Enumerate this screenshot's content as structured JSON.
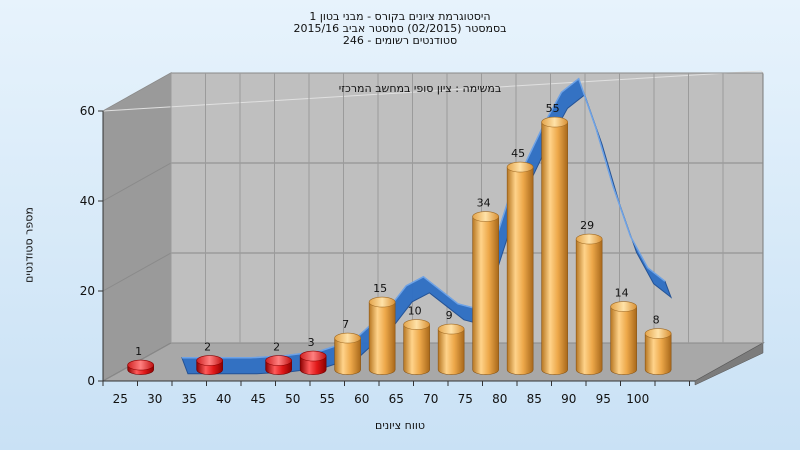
{
  "chart_data": {
    "type": "bar",
    "title_lines": [
      "היסטוגרמת ציונים בקורס - מבני בטון 1",
      "בסמסטר  (02/2015)  סמסטר אביב 2015/16",
      "סטודנטים רשומים - 246"
    ],
    "annotation": "במשימה : ציון סופי במחשב המרכזי",
    "xlabel": "טווח ציונים",
    "ylabel": "מספר סטודנטים",
    "ylim": [
      0,
      60
    ],
    "yticks": [
      0,
      20,
      40,
      60
    ],
    "x_ticks": [
      25,
      30,
      35,
      40,
      45,
      50,
      55,
      60,
      65,
      70,
      75,
      80,
      85,
      90,
      95,
      100
    ],
    "bars": [
      {
        "x": 25,
        "value": 1,
        "label": "1",
        "status": "fail"
      },
      {
        "x": 35,
        "value": 2,
        "label": "2",
        "status": "fail"
      },
      {
        "x": 45,
        "value": 2,
        "label": "2",
        "status": "fail"
      },
      {
        "x": 50,
        "value": 3,
        "label": "3",
        "status": "fail"
      },
      {
        "x": 55,
        "value": 7,
        "label": "7",
        "status": "pass"
      },
      {
        "x": 60,
        "value": 15,
        "label": "15",
        "status": "pass"
      },
      {
        "x": 65,
        "value": 10,
        "label": "10",
        "status": "pass"
      },
      {
        "x": 70,
        "value": 9,
        "label": "9",
        "status": "pass"
      },
      {
        "x": 75,
        "value": 34,
        "label": "34",
        "status": "pass"
      },
      {
        "x": 80,
        "value": 45,
        "label": "45",
        "status": "pass"
      },
      {
        "x": 85,
        "value": 55,
        "label": "55",
        "status": "pass"
      },
      {
        "x": 90,
        "value": 29,
        "label": "29",
        "status": "pass"
      },
      {
        "x": 95,
        "value": 14,
        "label": "14",
        "status": "pass"
      },
      {
        "x": 100,
        "value": 8,
        "label": "8",
        "status": "pass"
      }
    ],
    "trend_curve": [
      [
        30,
        0
      ],
      [
        35,
        0
      ],
      [
        40,
        0
      ],
      [
        45,
        0.5
      ],
      [
        50,
        1.5
      ],
      [
        55,
        4
      ],
      [
        60,
        11
      ],
      [
        62.5,
        16
      ],
      [
        65,
        18
      ],
      [
        67.5,
        15
      ],
      [
        70,
        12
      ],
      [
        72.5,
        11
      ],
      [
        75,
        24
      ],
      [
        77.5,
        36
      ],
      [
        80,
        44
      ],
      [
        82.5,
        52
      ],
      [
        85,
        59
      ],
      [
        87.5,
        62
      ],
      [
        90,
        51
      ],
      [
        92.5,
        38
      ],
      [
        95,
        27
      ],
      [
        97.5,
        20
      ],
      [
        100,
        17
      ]
    ],
    "grid": true,
    "colors": {
      "pass_bar": "#e8a646",
      "fail_bar": "#e02020",
      "trend": "#2f6fc4",
      "back_wall": "#bfbfbf",
      "side_wall": "#9a9a9a",
      "floor": "#a8a8a8"
    }
  }
}
